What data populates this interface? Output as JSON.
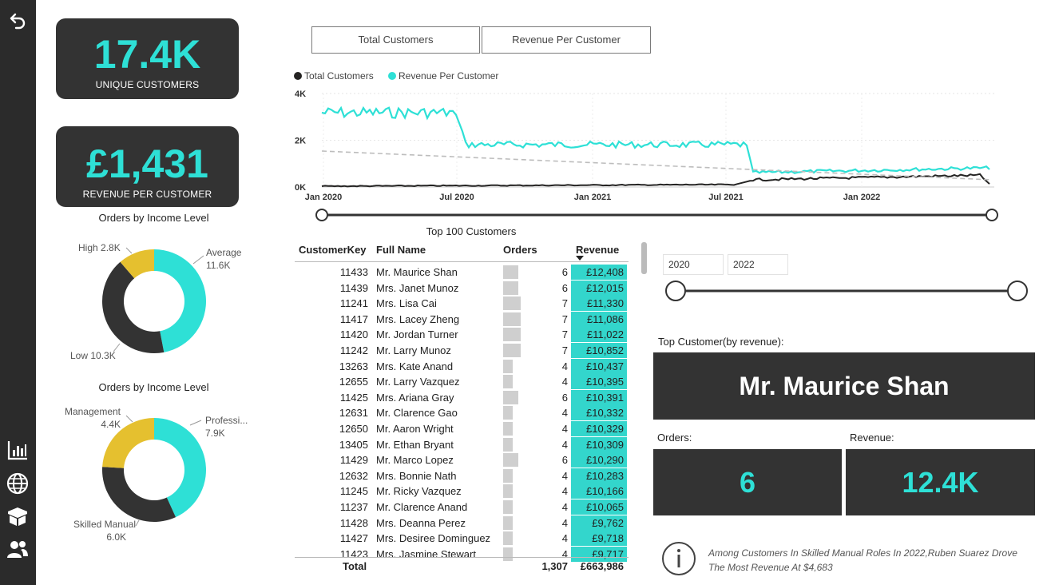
{
  "nav": {
    "back_icon": "undo-arrow-icon",
    "items": [
      {
        "icon": "bar-chart-icon"
      },
      {
        "icon": "globe-icon"
      },
      {
        "icon": "package-icon"
      },
      {
        "icon": "users-icon"
      }
    ]
  },
  "kpis": {
    "unique_customers": {
      "value": "17.4K",
      "label": "UNIQUE CUSTOMERS"
    },
    "revenue_per_customer": {
      "value": "£1,431",
      "label": "REVENUE PER CUSTOMER"
    }
  },
  "toggles": {
    "total_customers": "Total Customers",
    "revenue_per_customer": "Revenue Per Customer"
  },
  "line_chart": {
    "legend": [
      {
        "name": "Total Customers",
        "color": "#252423"
      },
      {
        "name": "Revenue Per Customer",
        "color": "#2ee0d6"
      }
    ],
    "y_ticks": [
      "4K",
      "2K",
      "0K"
    ],
    "x_ticks": [
      "Jan 2020",
      "Jul 2020",
      "Jan 2021",
      "Jul 2021",
      "Jan 2022"
    ]
  },
  "donut_income": {
    "title": "Orders by Income Level",
    "segments": [
      {
        "label": "Average",
        "value": "11.6K",
        "color": "#2ee0d6",
        "amount": 11.6
      },
      {
        "label": "Low",
        "value": "10.3K",
        "color": "#333333",
        "amount": 10.3
      },
      {
        "label": "High",
        "value": "2.8K",
        "color": "#e5c02f",
        "amount": 2.8
      }
    ]
  },
  "donut_occupation": {
    "title": "Orders by Income Level",
    "segments": [
      {
        "label": "Professi...",
        "value": "7.9K",
        "color": "#2ee0d6",
        "amount": 7.9
      },
      {
        "label": "Skilled Manual",
        "value": "6.0K",
        "color": "#333333",
        "amount": 6.0
      },
      {
        "label": "Management",
        "value": "4.4K",
        "color": "#e5c02f",
        "amount": 4.4
      }
    ]
  },
  "table": {
    "title": "Top 100 Customers",
    "columns": {
      "key": "CustomerKey",
      "name": "Full Name",
      "orders": "Orders",
      "revenue": "Revenue"
    },
    "rows": [
      {
        "key": "11433",
        "name": "Mr. Maurice Shan",
        "orders": "6",
        "revenue": "£12,408"
      },
      {
        "key": "11439",
        "name": "Mrs. Janet Munoz",
        "orders": "6",
        "revenue": "£12,015"
      },
      {
        "key": "11241",
        "name": "Mrs. Lisa Cai",
        "orders": "7",
        "revenue": "£11,330"
      },
      {
        "key": "11417",
        "name": "Mrs. Lacey Zheng",
        "orders": "7",
        "revenue": "£11,086"
      },
      {
        "key": "11420",
        "name": "Mr. Jordan Turner",
        "orders": "7",
        "revenue": "£11,022"
      },
      {
        "key": "11242",
        "name": "Mr. Larry Munoz",
        "orders": "7",
        "revenue": "£10,852"
      },
      {
        "key": "13263",
        "name": "Mrs. Kate Anand",
        "orders": "4",
        "revenue": "£10,437"
      },
      {
        "key": "12655",
        "name": "Mr. Larry Vazquez",
        "orders": "4",
        "revenue": "£10,395"
      },
      {
        "key": "11425",
        "name": "Mrs. Ariana Gray",
        "orders": "6",
        "revenue": "£10,391"
      },
      {
        "key": "12631",
        "name": "Mr. Clarence Gao",
        "orders": "4",
        "revenue": "£10,332"
      },
      {
        "key": "12650",
        "name": "Mr. Aaron Wright",
        "orders": "4",
        "revenue": "£10,329"
      },
      {
        "key": "13405",
        "name": "Mr. Ethan Bryant",
        "orders": "4",
        "revenue": "£10,309"
      },
      {
        "key": "11429",
        "name": "Mr. Marco Lopez",
        "orders": "6",
        "revenue": "£10,290"
      },
      {
        "key": "12632",
        "name": "Mrs. Bonnie Nath",
        "orders": "4",
        "revenue": "£10,283"
      },
      {
        "key": "11245",
        "name": "Mr. Ricky Vazquez",
        "orders": "4",
        "revenue": "£10,166"
      },
      {
        "key": "11237",
        "name": "Mr. Clarence Anand",
        "orders": "4",
        "revenue": "£10,065"
      },
      {
        "key": "11428",
        "name": "Mrs. Deanna Perez",
        "orders": "4",
        "revenue": "£9,762"
      },
      {
        "key": "11427",
        "name": "Mrs. Desiree Dominguez",
        "orders": "4",
        "revenue": "£9,718"
      },
      {
        "key": "11423",
        "name": "Mrs. Jasmine Stewart",
        "orders": "4",
        "revenue": "£9,717"
      }
    ],
    "total": {
      "label": "Total",
      "orders": "1,307",
      "revenue": "£663,986"
    }
  },
  "year_filter": {
    "from": "2020",
    "to": "2022"
  },
  "top_customer": {
    "label": "Top Customer(by revenue):",
    "name": "Mr. Maurice Shan",
    "orders_label": "Orders:",
    "orders": "6",
    "revenue_label": "Revenue:",
    "revenue": "12.4K"
  },
  "insight": {
    "icon": "info-icon",
    "text": "Among Customers In Skilled Manual Roles In 2022,Ruben Suarez Drove The Most Revenue At $4,683"
  }
}
